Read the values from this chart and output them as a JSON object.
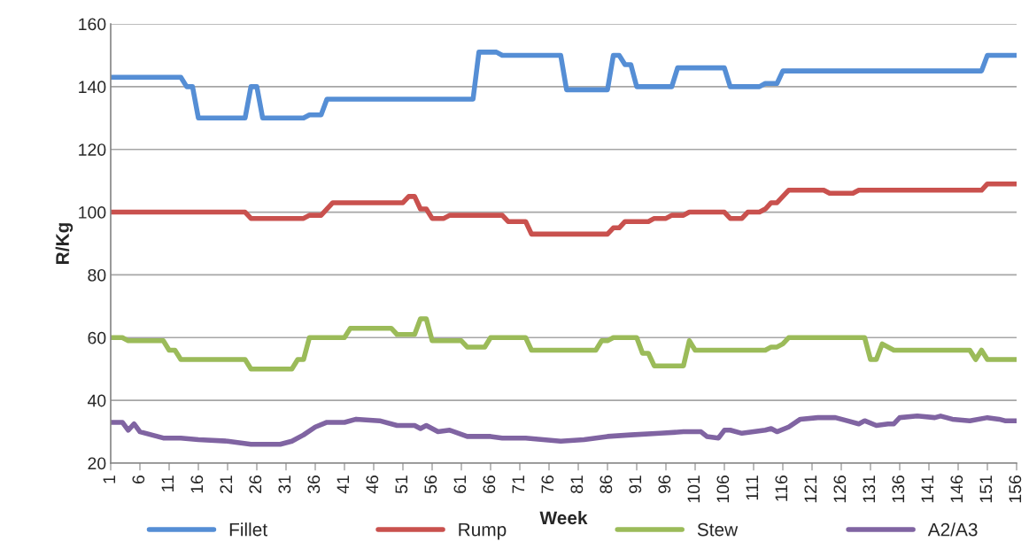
{
  "chart_data": {
    "type": "line",
    "xlabel": "Week",
    "ylabel": "R/Kg",
    "xlim": [
      1,
      156
    ],
    "xticks": [
      1,
      6,
      11,
      16,
      21,
      26,
      31,
      36,
      41,
      46,
      51,
      56,
      61,
      66,
      71,
      76,
      81,
      86,
      91,
      96,
      101,
      106,
      111,
      116,
      121,
      126,
      131,
      136,
      141,
      146,
      151,
      156
    ],
    "ylim": [
      20,
      160
    ],
    "yticks": [
      20,
      40,
      60,
      80,
      100,
      120,
      140,
      160
    ],
    "grid": "y",
    "legend": "bottom",
    "marker": "none",
    "line_style": "solid",
    "series": [
      {
        "name": "Fillet",
        "color": "#558ed5",
        "x": [
          1,
          13,
          14,
          15,
          16,
          24,
          25,
          26,
          27,
          34,
          35,
          37,
          38,
          63,
          64,
          67,
          68,
          78,
          79,
          86,
          87,
          88,
          89,
          90,
          91,
          97,
          98,
          106,
          107,
          112,
          113,
          115,
          116,
          150,
          151,
          156
        ],
        "values": [
          143,
          143,
          140,
          140,
          130,
          130,
          140,
          140,
          130,
          130,
          131,
          131,
          136,
          136,
          151,
          151,
          150,
          150,
          139,
          139,
          150,
          150,
          147,
          147,
          140,
          140,
          146,
          146,
          140,
          140,
          141,
          141,
          145,
          145,
          150,
          150
        ]
      },
      {
        "name": "Rump",
        "color": "#c9514e",
        "x": [
          1,
          24,
          25,
          34,
          35,
          37,
          39,
          51,
          52,
          53,
          54,
          55,
          56,
          58,
          59,
          68,
          69,
          72,
          73,
          86,
          87,
          88,
          89,
          93,
          94,
          96,
          97,
          99,
          100,
          106,
          107,
          109,
          110,
          112,
          113,
          114,
          115,
          117,
          123,
          124,
          128,
          129,
          150,
          151,
          156
        ],
        "values": [
          100,
          100,
          98,
          98,
          99,
          99,
          103,
          103,
          105,
          105,
          101,
          101,
          98,
          98,
          99,
          99,
          97,
          97,
          93,
          93,
          95,
          95,
          97,
          97,
          98,
          98,
          99,
          99,
          100,
          100,
          98,
          98,
          100,
          100,
          101,
          103,
          103,
          107,
          107,
          106,
          106,
          107,
          107,
          109,
          109
        ]
      },
      {
        "name": "Stew",
        "color": "#9bbb59",
        "x": [
          1,
          3,
          4,
          10,
          11,
          12,
          13,
          24,
          25,
          32,
          33,
          34,
          35,
          41,
          42,
          49,
          50,
          53,
          54,
          55,
          56,
          61,
          62,
          65,
          66,
          72,
          73,
          84,
          85,
          86,
          87,
          91,
          92,
          93,
          94,
          99,
          100,
          101,
          113,
          114,
          115,
          116,
          117,
          130,
          131,
          132,
          133,
          135,
          148,
          149,
          150,
          151,
          156
        ],
        "values": [
          60,
          60,
          59,
          59,
          56,
          56,
          53,
          53,
          50,
          50,
          53,
          53,
          60,
          60,
          63,
          63,
          61,
          61,
          66,
          66,
          59,
          59,
          57,
          57,
          60,
          60,
          56,
          56,
          59,
          59,
          60,
          60,
          55,
          55,
          51,
          51,
          59,
          56,
          56,
          57,
          57,
          58,
          60,
          60,
          53,
          53,
          58,
          56,
          56,
          53,
          56,
          53,
          53
        ]
      },
      {
        "name": "A2/A3",
        "color": "#8064a2",
        "x": [
          1,
          3,
          4,
          5,
          6,
          8,
          10,
          13,
          16,
          21,
          23,
          25,
          30,
          32,
          34,
          36,
          38,
          41,
          43,
          47,
          50,
          53,
          54,
          55,
          57,
          59,
          62,
          66,
          68,
          72,
          75,
          78,
          82,
          86,
          90,
          95,
          99,
          102,
          103,
          105,
          106,
          107,
          109,
          113,
          114,
          115,
          117,
          119,
          122,
          125,
          127,
          129,
          130,
          132,
          134,
          135,
          136,
          139,
          142,
          143,
          145,
          148,
          151,
          153,
          154,
          156
        ],
        "values": [
          33,
          33,
          30.5,
          32.5,
          30,
          29,
          28,
          28,
          27.5,
          27,
          26.5,
          26,
          26,
          27,
          29,
          31.5,
          33,
          33,
          34,
          33.5,
          32,
          32,
          31,
          32,
          30,
          30.5,
          28.5,
          28.5,
          28,
          28,
          27.5,
          27,
          27.5,
          28.5,
          29,
          29.5,
          30,
          30,
          28.5,
          28,
          30.5,
          30.5,
          29.5,
          30.5,
          31,
          30,
          31.5,
          34,
          34.5,
          34.5,
          33.5,
          32.5,
          33.5,
          32,
          32.5,
          32.5,
          34.5,
          35,
          34.5,
          35,
          34,
          33.5,
          34.5,
          34,
          33.5,
          33.5
        ]
      }
    ]
  }
}
